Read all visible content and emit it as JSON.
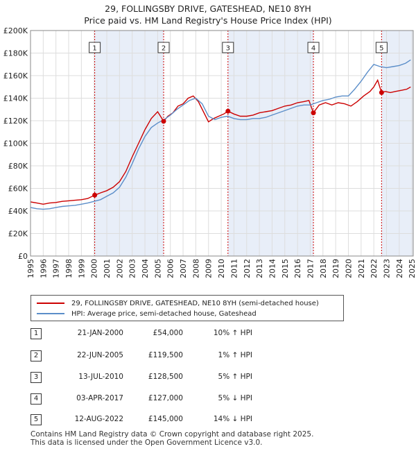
{
  "title_line1": "29, FOLLINGSBY DRIVE, GATESHEAD, NE10 8YH",
  "title_line2": "Price paid vs. HM Land Registry's House Price Index (HPI)",
  "chart_data": {
    "type": "line",
    "xlim": [
      1995,
      2025.1
    ],
    "ylim": [
      0,
      200000
    ],
    "x_ticks": [
      1995,
      1996,
      1997,
      1998,
      1999,
      2000,
      2001,
      2002,
      2003,
      2004,
      2005,
      2006,
      2007,
      2008,
      2009,
      2010,
      2011,
      2012,
      2013,
      2014,
      2015,
      2016,
      2017,
      2018,
      2019,
      2020,
      2021,
      2022,
      2023,
      2024,
      2025
    ],
    "y_ticks": [
      0,
      20000,
      40000,
      60000,
      80000,
      100000,
      120000,
      140000,
      160000,
      180000,
      200000
    ],
    "y_tick_labels": [
      "£0",
      "£20K",
      "£40K",
      "£60K",
      "£80K",
      "£100K",
      "£120K",
      "£140K",
      "£160K",
      "£180K",
      "£200K"
    ],
    "grid": true,
    "series": [
      {
        "name": "29, FOLLINGSBY DRIVE, GATESHEAD, NE10 8YH (semi-detached house)",
        "color": "#cc0000",
        "x": [
          1995.0,
          1995.5,
          1996.0,
          1996.5,
          1997.0,
          1997.5,
          1998.0,
          1998.5,
          1999.0,
          1999.5,
          2000.05,
          2000.5,
          2001.0,
          2001.5,
          2002.0,
          2002.5,
          2003.0,
          2003.5,
          2004.0,
          2004.5,
          2005.0,
          2005.47,
          2005.8,
          2006.2,
          2006.6,
          2007.0,
          2007.4,
          2007.8,
          2008.2,
          2008.6,
          2009.0,
          2009.4,
          2009.8,
          2010.2,
          2010.53,
          2011.0,
          2011.5,
          2012.0,
          2012.5,
          2013.0,
          2013.5,
          2014.0,
          2014.5,
          2015.0,
          2015.5,
          2016.0,
          2016.5,
          2016.9,
          2017.25,
          2017.7,
          2018.2,
          2018.7,
          2019.2,
          2019.7,
          2020.2,
          2020.7,
          2021.2,
          2021.7,
          2022.0,
          2022.3,
          2022.61,
          2022.9,
          2023.3,
          2023.7,
          2024.2,
          2024.6,
          2024.9
        ],
        "y": [
          48000,
          47000,
          46000,
          47000,
          47500,
          48500,
          49000,
          49500,
          50000,
          51000,
          54000,
          56000,
          58000,
          61000,
          66000,
          75000,
          88000,
          100000,
          112000,
          122000,
          128000,
          119500,
          124000,
          127000,
          133000,
          135000,
          140000,
          142000,
          137000,
          128000,
          119000,
          122000,
          124000,
          126000,
          128500,
          126000,
          124000,
          124000,
          125000,
          127000,
          128000,
          129000,
          131000,
          133000,
          134000,
          136000,
          137000,
          138000,
          127000,
          134000,
          136000,
          134000,
          136000,
          135000,
          133000,
          137000,
          142000,
          146000,
          150000,
          156000,
          145000,
          146000,
          145000,
          146000,
          147000,
          148000,
          150000
        ]
      },
      {
        "name": "HPI: Average price, semi-detached house, Gateshead",
        "color": "#5b8ec9",
        "x": [
          1995.0,
          1995.5,
          1996.0,
          1996.5,
          1997.0,
          1997.5,
          1998.0,
          1998.5,
          1999.0,
          1999.5,
          2000.0,
          2000.5,
          2001.0,
          2001.5,
          2002.0,
          2002.5,
          2003.0,
          2003.5,
          2004.0,
          2004.5,
          2005.0,
          2005.5,
          2006.0,
          2006.5,
          2007.0,
          2007.5,
          2008.0,
          2008.5,
          2009.0,
          2009.5,
          2010.0,
          2010.5,
          2011.0,
          2011.5,
          2012.0,
          2012.5,
          2013.0,
          2013.5,
          2014.0,
          2014.5,
          2015.0,
          2015.5,
          2016.0,
          2016.5,
          2017.0,
          2017.5,
          2018.0,
          2018.5,
          2019.0,
          2019.5,
          2020.0,
          2020.5,
          2021.0,
          2021.5,
          2022.0,
          2022.5,
          2023.0,
          2023.5,
          2024.0,
          2024.5,
          2024.9
        ],
        "y": [
          43000,
          42000,
          41500,
          42000,
          43000,
          44000,
          44500,
          45000,
          46000,
          47000,
          48500,
          50000,
          53000,
          56000,
          61000,
          70000,
          82000,
          95000,
          106000,
          114000,
          118000,
          121000,
          125000,
          130000,
          134000,
          138000,
          140000,
          135000,
          124000,
          121000,
          123000,
          124000,
          122000,
          121000,
          121000,
          122000,
          122000,
          123000,
          125000,
          127000,
          129000,
          131000,
          133000,
          134000,
          134000,
          136000,
          138000,
          139000,
          141000,
          142000,
          142000,
          148000,
          155000,
          163000,
          170000,
          168000,
          167000,
          168000,
          169000,
          171000,
          174000
        ]
      }
    ],
    "sales": [
      {
        "label": "1",
        "x": 2000.05,
        "y": 54000
      },
      {
        "label": "2",
        "x": 2005.47,
        "y": 119500
      },
      {
        "label": "3",
        "x": 2010.53,
        "y": 128500
      },
      {
        "label": "4",
        "x": 2017.25,
        "y": 127000
      },
      {
        "label": "5",
        "x": 2022.61,
        "y": 145000
      }
    ]
  },
  "legend": {
    "property_label": "29, FOLLINGSBY DRIVE, GATESHEAD, NE10 8YH (semi-detached house)",
    "hpi_label": "HPI: Average price, semi-detached house, Gateshead"
  },
  "sales_table": [
    {
      "num": "1",
      "date": "21-JAN-2000",
      "price": "£54,000",
      "hpi": "10% ↑ HPI"
    },
    {
      "num": "2",
      "date": "22-JUN-2005",
      "price": "£119,500",
      "hpi": "1% ↑ HPI"
    },
    {
      "num": "3",
      "date": "13-JUL-2010",
      "price": "£128,500",
      "hpi": "5% ↑ HPI"
    },
    {
      "num": "4",
      "date": "03-APR-2017",
      "price": "£127,000",
      "hpi": "5% ↓ HPI"
    },
    {
      "num": "5",
      "date": "12-AUG-2022",
      "price": "£145,000",
      "hpi": "14% ↓ HPI"
    }
  ],
  "footer_line1": "Contains HM Land Registry data © Crown copyright and database right 2025.",
  "footer_line2": "This data is licensed under the Open Government Licence v3.0."
}
